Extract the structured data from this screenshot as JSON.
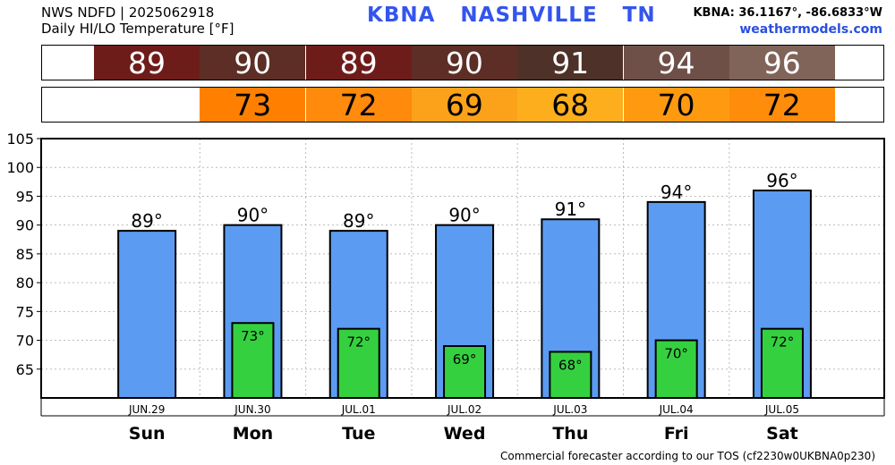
{
  "header": {
    "line1": "NWS NDFD | 2025062918",
    "line2": "Daily HI/LO Temperature [°F]",
    "station_id": "KBNA",
    "station_name": "NASHVILLE",
    "state": "TN",
    "coords": "KBNA: 36.1167°, -86.6833°W",
    "site": "weathermodels.com"
  },
  "strips": {
    "hi_colors": [
      "#6e1c1a",
      "#5c2e25",
      "#6e1c1a",
      "#5c2e25",
      "#4e3128",
      "#6e5049",
      "#80645a"
    ],
    "lo_colors": [
      "",
      "#ff8000",
      "#ff8a0c",
      "#fba21a",
      "#fdae1c",
      "#ff9a10",
      "#ff8c0a"
    ]
  },
  "chart_data": {
    "type": "bar",
    "categories": [
      "Sun",
      "Mon",
      "Tue",
      "Wed",
      "Thu",
      "Fri",
      "Sat"
    ],
    "dates": [
      "JUN.29",
      "JUN.30",
      "JUL.01",
      "JUL.02",
      "JUL.03",
      "JUL.04",
      "JUL.05"
    ],
    "series": [
      {
        "values": [
          89,
          90,
          89,
          90,
          91,
          94,
          96
        ],
        "labels": [
          "89°",
          "90°",
          "89°",
          "90°",
          "91°",
          "94°",
          "96°"
        ],
        "color": "#5b9bf2"
      },
      {
        "values": [
          null,
          73,
          72,
          69,
          68,
          70,
          72
        ],
        "labels": [
          "",
          "73°",
          "72°",
          "69°",
          "68°",
          "70°",
          "72°"
        ],
        "color": "#35d040"
      }
    ],
    "ylim": [
      60,
      105
    ],
    "yticks": [
      65,
      70,
      75,
      80,
      85,
      90,
      95,
      100,
      105
    ],
    "grid": true
  },
  "footer": "Commercial forecaster according to our TOS (cf2230w0UKBNA0p230)"
}
